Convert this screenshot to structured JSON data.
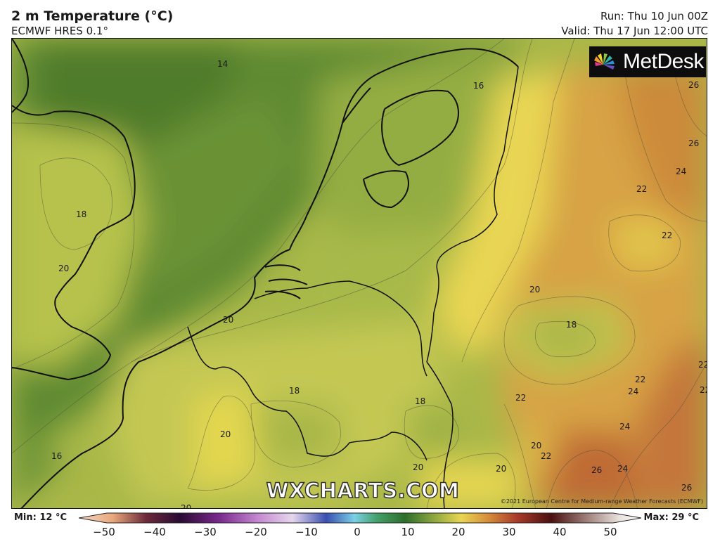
{
  "header": {
    "title": "2 m Temperature (°C)",
    "model": "ECMWF HRES 0.1°",
    "run": "Run: Thu 10 Jun 00Z",
    "valid": "Valid: Thu 17 Jun 12:00 UTC"
  },
  "logo": {
    "name": "MetDesk"
  },
  "watermark": "WXCHARTS.COM",
  "copyright": "©2021 European Centre for Medium-range Weather Forecasts (ECMWF)",
  "contour_labels": [
    "14",
    "16",
    "18",
    "20",
    "18",
    "18",
    "18",
    "20",
    "16",
    "20",
    "20",
    "18",
    "22",
    "20",
    "22",
    "20",
    "20",
    "22",
    "24",
    "22",
    "24",
    "22",
    "24",
    "26",
    "26",
    "26",
    "24",
    "22",
    "22",
    "20",
    "16",
    "26",
    "18",
    "22"
  ],
  "colorbar": {
    "min_label": "Min: 12 °C",
    "max_label": "Max: 29 °C",
    "ticks": [
      "−50",
      "−40",
      "−30",
      "−20",
      "−10",
      "0",
      "10",
      "20",
      "30",
      "40",
      "50"
    ]
  },
  "colors": {
    "cool_green": "#5e8a32",
    "mid_green": "#8aa63f",
    "yellow_green": "#c6cb52",
    "yellow": "#e8d952",
    "orange": "#d8a645",
    "dark_orange": "#c4763a"
  }
}
